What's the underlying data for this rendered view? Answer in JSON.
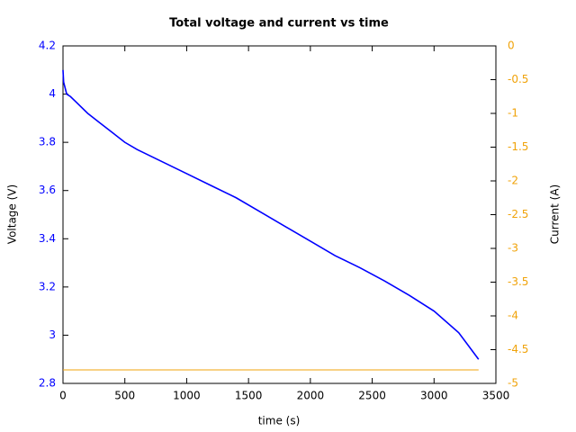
{
  "chart_data": {
    "type": "line",
    "title": "Total voltage and current vs time",
    "x_label": "time (s)",
    "y_label": "Voltage (V)",
    "y2_label": "Current (A)",
    "x": [
      0,
      5,
      30,
      60,
      100,
      200,
      300,
      400,
      500,
      600,
      800,
      1000,
      1200,
      1400,
      1600,
      1800,
      2000,
      2200,
      2400,
      2600,
      2800,
      3000,
      3200,
      3360
    ],
    "series": [
      {
        "name": "Voltage",
        "color": "#0000ff",
        "axis": "y",
        "values": [
          4.1,
          4.05,
          4.0,
          3.99,
          3.97,
          3.92,
          3.88,
          3.84,
          3.8,
          3.77,
          3.72,
          3.67,
          3.62,
          3.57,
          3.51,
          3.45,
          3.39,
          3.33,
          3.28,
          3.225,
          3.165,
          3.1,
          3.01,
          2.9
        ]
      },
      {
        "name": "Current",
        "color": "#f0a30a",
        "axis": "y2",
        "values": [
          -4.8,
          -4.8,
          -4.8,
          -4.8,
          -4.8,
          -4.8,
          -4.8,
          -4.8,
          -4.8,
          -4.8,
          -4.8,
          -4.8,
          -4.8,
          -4.8,
          -4.8,
          -4.8,
          -4.8,
          -4.8,
          -4.8,
          -4.8,
          -4.8,
          -4.8,
          -4.8,
          -4.8
        ]
      }
    ],
    "xlim": [
      0,
      3500
    ],
    "xticks": [
      0,
      500,
      1000,
      1500,
      2000,
      2500,
      3000,
      3500
    ],
    "ylim": [
      2.8,
      4.2
    ],
    "yticks": [
      2.8,
      3,
      3.2,
      3.4,
      3.6,
      3.8,
      4,
      4.2
    ],
    "y2lim": [
      -5,
      0
    ],
    "y2ticks": [
      0,
      -0.5,
      -1,
      -1.5,
      -2,
      -2.5,
      -3,
      -3.5,
      -4,
      -4.5,
      -5
    ],
    "y_color": "#0000ff",
    "y2_color": "#f0a30a"
  }
}
